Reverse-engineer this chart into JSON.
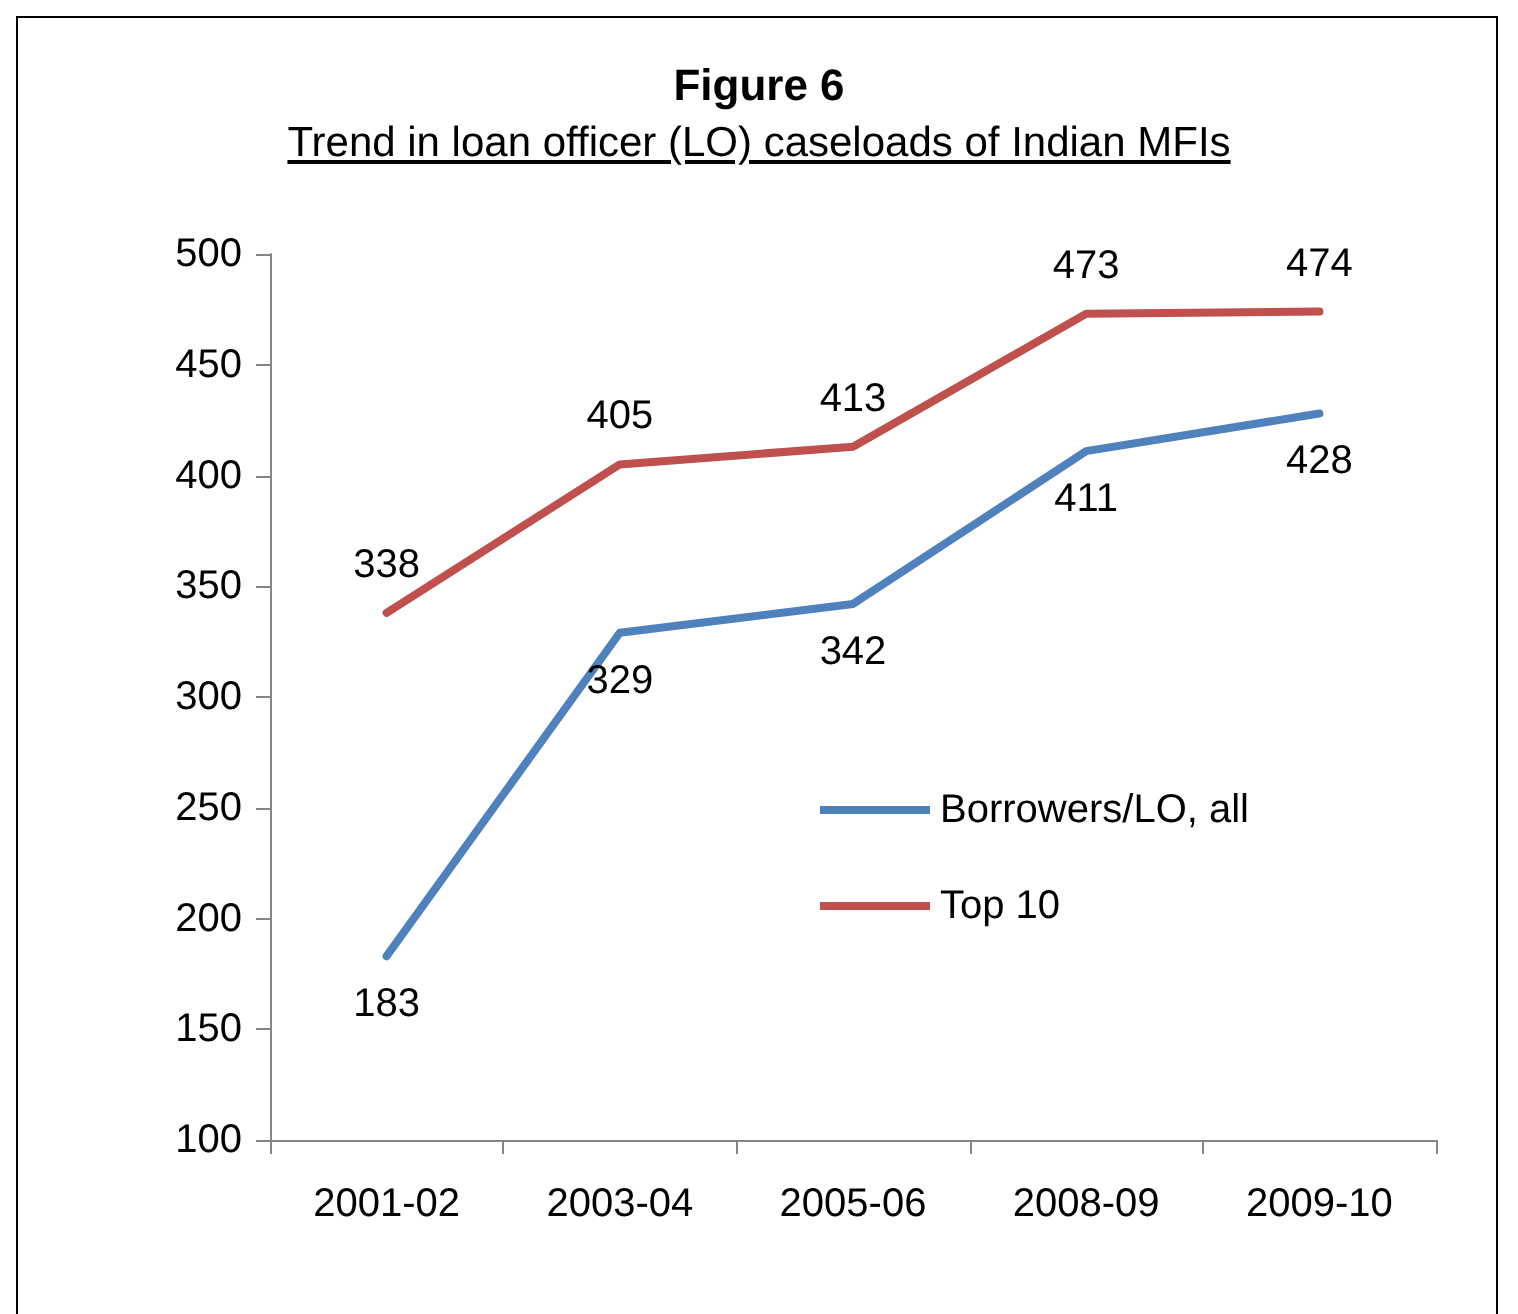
{
  "chart_data": {
    "type": "line",
    "title": "Figure 6",
    "subtitle": "Trend in loan officer (LO) caseloads of Indian MFIs",
    "categories": [
      "2001-02",
      "2003-04",
      "2005-06",
      "2008-09",
      "2009-10"
    ],
    "series": [
      {
        "name": "Borrowers/LO, all",
        "color": "#4f81bd",
        "values": [
          183,
          329,
          342,
          411,
          428
        ]
      },
      {
        "name": "Top 10",
        "color": "#c0504d",
        "values": [
          338,
          405,
          413,
          473,
          474
        ]
      }
    ],
    "ylim": [
      100,
      500
    ],
    "yticks": [
      100,
      150,
      200,
      250,
      300,
      350,
      400,
      450,
      500
    ],
    "grid": false,
    "legend": "right",
    "data_labels": true,
    "marker": "none",
    "line_style": "solid"
  }
}
